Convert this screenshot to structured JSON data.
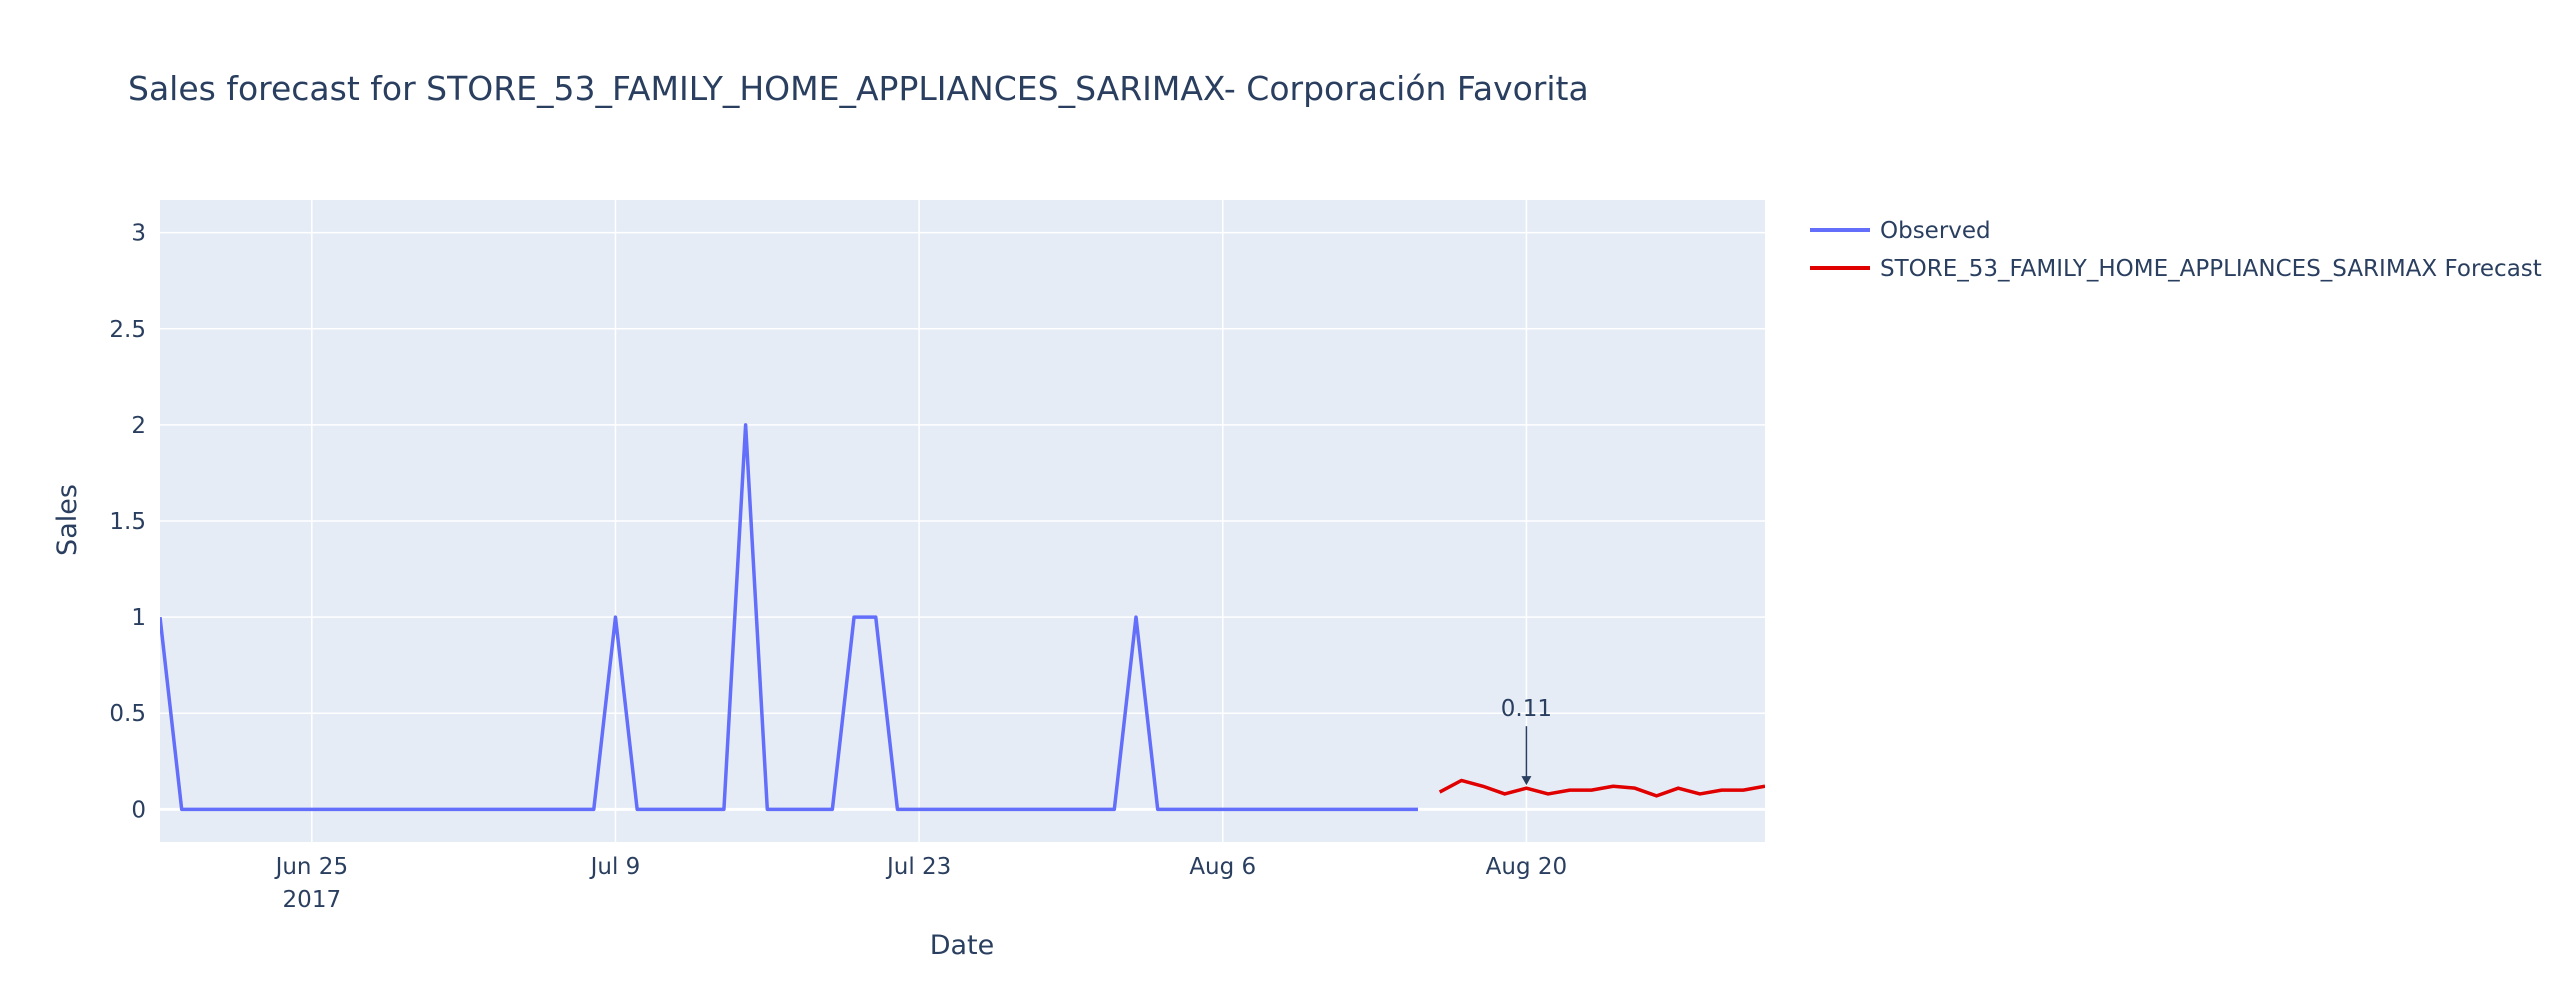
{
  "chart_data": {
    "type": "line",
    "title": "Sales forecast for STORE_53_FAMILY_HOME_APPLIANCES_SARIMAX- Corporación Favorita",
    "xlabel": "Date",
    "ylabel": "Sales",
    "xlim": [
      "2017-06-18",
      "2017-08-31"
    ],
    "ylim": [
      -0.17,
      3.17
    ],
    "x_ticks": [
      {
        "date": "2017-06-25",
        "label": "Jun 25",
        "sublabel": "2017"
      },
      {
        "date": "2017-07-09",
        "label": "Jul 9",
        "sublabel": ""
      },
      {
        "date": "2017-07-23",
        "label": "Jul 23",
        "sublabel": ""
      },
      {
        "date": "2017-08-06",
        "label": "Aug 6",
        "sublabel": ""
      },
      {
        "date": "2017-08-20",
        "label": "Aug 20",
        "sublabel": ""
      }
    ],
    "y_ticks": [
      {
        "value": 0,
        "label": "0"
      },
      {
        "value": 0.5,
        "label": "0.5"
      },
      {
        "value": 1,
        "label": "1"
      },
      {
        "value": 1.5,
        "label": "1.5"
      },
      {
        "value": 2,
        "label": "2"
      },
      {
        "value": 2.5,
        "label": "2.5"
      },
      {
        "value": 3,
        "label": "3"
      }
    ],
    "grid": true,
    "legend_position": "right",
    "series": [
      {
        "name": "Observed",
        "color": "#636efa",
        "x": [
          "2017-06-18",
          "2017-06-19",
          "2017-06-20",
          "2017-06-21",
          "2017-06-22",
          "2017-06-23",
          "2017-06-24",
          "2017-06-25",
          "2017-06-26",
          "2017-06-27",
          "2017-06-28",
          "2017-06-29",
          "2017-06-30",
          "2017-07-01",
          "2017-07-02",
          "2017-07-03",
          "2017-07-04",
          "2017-07-05",
          "2017-07-06",
          "2017-07-07",
          "2017-07-08",
          "2017-07-09",
          "2017-07-10",
          "2017-07-11",
          "2017-07-12",
          "2017-07-13",
          "2017-07-14",
          "2017-07-15",
          "2017-07-16",
          "2017-07-17",
          "2017-07-18",
          "2017-07-19",
          "2017-07-20",
          "2017-07-21",
          "2017-07-22",
          "2017-07-23",
          "2017-07-24",
          "2017-07-25",
          "2017-07-26",
          "2017-07-27",
          "2017-07-28",
          "2017-07-29",
          "2017-07-30",
          "2017-07-31",
          "2017-08-01",
          "2017-08-02",
          "2017-08-03",
          "2017-08-04",
          "2017-08-05",
          "2017-08-06",
          "2017-08-07",
          "2017-08-08",
          "2017-08-09",
          "2017-08-10",
          "2017-08-11",
          "2017-08-12",
          "2017-08-13",
          "2017-08-14",
          "2017-08-15"
        ],
        "y": [
          1,
          0,
          0,
          0,
          0,
          0,
          0,
          0,
          0,
          0,
          0,
          0,
          0,
          0,
          0,
          0,
          0,
          0,
          0,
          0,
          0,
          1,
          0,
          0,
          0,
          0,
          0,
          2,
          0,
          0,
          0,
          0,
          1,
          1,
          0,
          0,
          0,
          0,
          0,
          0,
          0,
          0,
          0,
          0,
          0,
          1,
          0,
          0,
          0,
          0,
          0,
          0,
          0,
          0,
          0,
          0,
          0,
          0,
          0
        ]
      },
      {
        "name": "STORE_53_FAMILY_HOME_APPLIANCES_SARIMAX Forecast",
        "color": "#e00000",
        "x": [
          "2017-08-16",
          "2017-08-17",
          "2017-08-18",
          "2017-08-19",
          "2017-08-20",
          "2017-08-21",
          "2017-08-22",
          "2017-08-23",
          "2017-08-24",
          "2017-08-25",
          "2017-08-26",
          "2017-08-27",
          "2017-08-28",
          "2017-08-29",
          "2017-08-30",
          "2017-08-31"
        ],
        "y": [
          0.09,
          0.15,
          0.12,
          0.08,
          0.11,
          0.08,
          0.1,
          0.1,
          0.12,
          0.11,
          0.07,
          0.11,
          0.08,
          0.1,
          0.1,
          0.12
        ]
      }
    ],
    "annotations": [
      {
        "x": "2017-08-20",
        "y": 0.11,
        "text": "0.11"
      }
    ]
  }
}
